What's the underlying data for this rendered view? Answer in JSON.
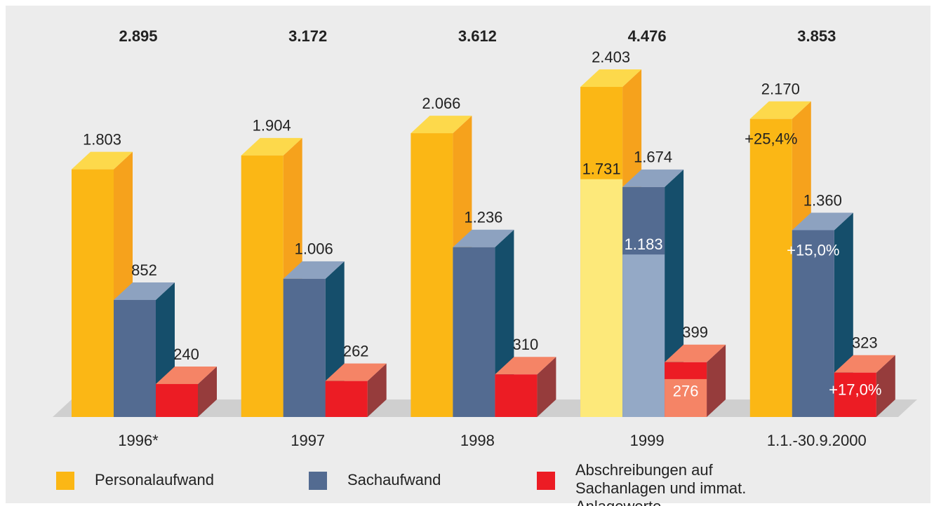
{
  "chart_data": {
    "type": "bar3d",
    "categories": [
      "1996*",
      "1997",
      "1998",
      "1999",
      "1.1.-30.9.2000"
    ],
    "totals": [
      2895,
      3172,
      3612,
      4476,
      3853
    ],
    "total_labels": [
      "2.895",
      "3.172",
      "3.612",
      "4.476",
      "3.853"
    ],
    "series": [
      {
        "name": "Personalaufwand",
        "color": "#fbb715",
        "values": [
          1803,
          1904,
          2066,
          2403,
          2170
        ],
        "value_labels": [
          "1.803",
          "1.904",
          "2.066",
          "2.403",
          "2.170"
        ],
        "period_values": [
          null,
          null,
          null,
          1731,
          null
        ],
        "period_labels": [
          null,
          null,
          null,
          "1.731",
          null
        ],
        "change_labels": [
          null,
          null,
          null,
          null,
          "+25,4%"
        ]
      },
      {
        "name": "Sachaufwand",
        "color": "#536b91",
        "values": [
          852,
          1006,
          1236,
          1674,
          1360
        ],
        "value_labels": [
          "852",
          "1.006",
          "1.236",
          "1.674",
          "1.360"
        ],
        "period_values": [
          null,
          null,
          null,
          1183,
          null
        ],
        "period_labels": [
          null,
          null,
          null,
          "1.183",
          null
        ],
        "change_labels": [
          null,
          null,
          null,
          null,
          "+15,0%"
        ]
      },
      {
        "name": "Abschreibungen auf Sachanlagen und immat. Anlagewerte",
        "color": "#ec1c24",
        "values": [
          240,
          262,
          310,
          399,
          323
        ],
        "value_labels": [
          "240",
          "262",
          "310",
          "399",
          "323"
        ],
        "period_values": [
          null,
          null,
          null,
          276,
          null
        ],
        "period_labels": [
          null,
          null,
          null,
          "276",
          null
        ],
        "change_labels": [
          null,
          null,
          null,
          null,
          "+17,0%"
        ]
      }
    ]
  }
}
